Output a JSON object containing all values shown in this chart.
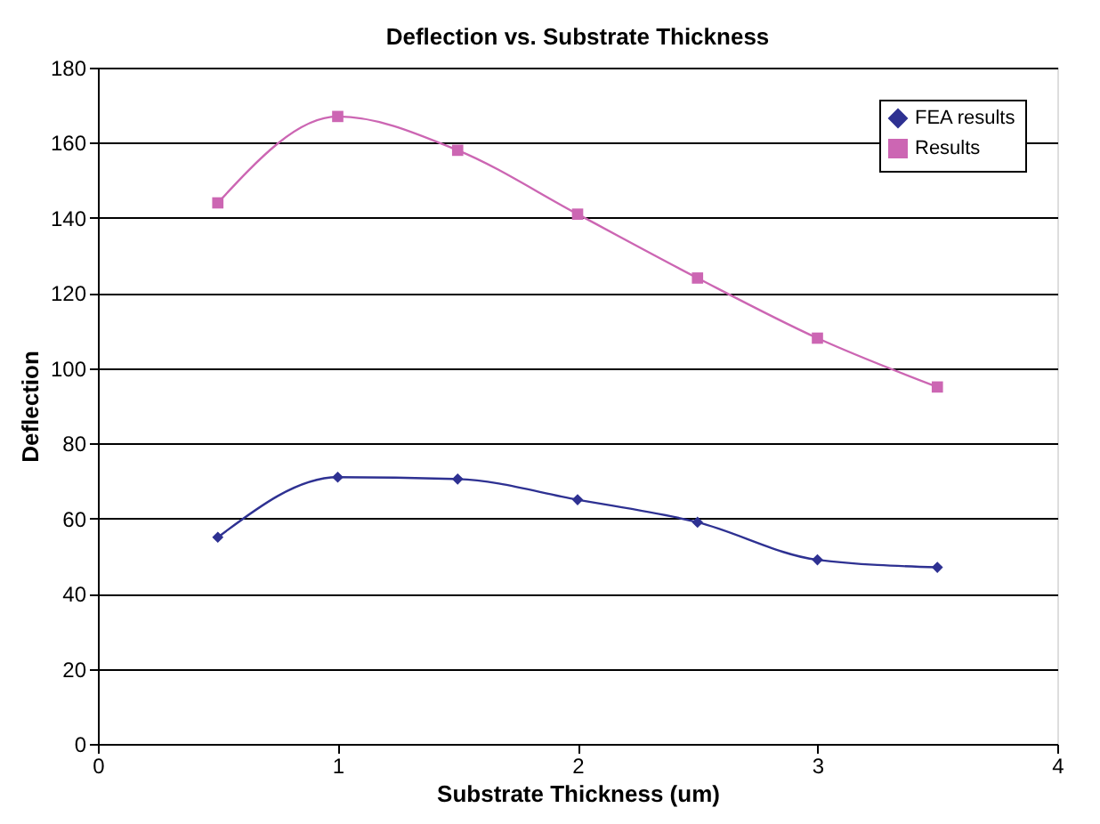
{
  "chart_data": {
    "type": "line",
    "title": "Deflection vs. Substrate Thickness",
    "xlabel": "Substrate Thickness (um)",
    "ylabel": "Deflection",
    "x": [
      0.5,
      1,
      1.5,
      2,
      2.5,
      3,
      3.5
    ],
    "series": [
      {
        "name": "FEA results",
        "color": "#2e3192",
        "marker": "diamond",
        "values": [
          55,
          71,
          70.5,
          65,
          59,
          49,
          47
        ]
      },
      {
        "name": "Results",
        "color": "#cc66b3",
        "marker": "square",
        "values": [
          144,
          167,
          158,
          141,
          124,
          108,
          95
        ]
      }
    ],
    "xlim": [
      0,
      4
    ],
    "xticks": [
      0,
      1,
      2,
      3,
      4
    ],
    "ylim": [
      0,
      180
    ],
    "yticks": [
      0,
      20,
      40,
      60,
      80,
      100,
      120,
      140,
      160,
      180
    ],
    "grid": "y",
    "legend": "top right",
    "line_style": "solid"
  }
}
